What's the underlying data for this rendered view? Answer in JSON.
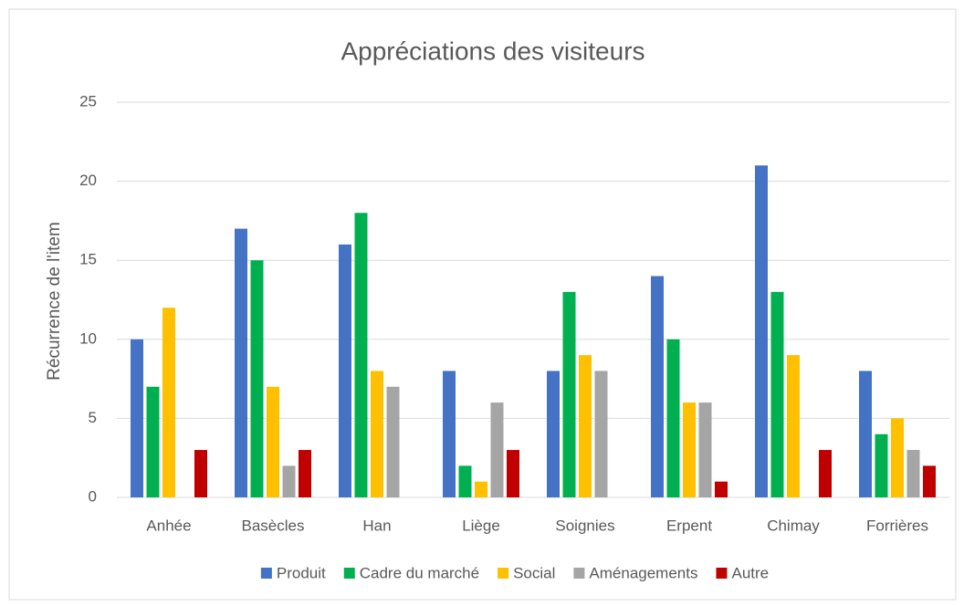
{
  "chart_data": {
    "type": "bar",
    "title": "Appréciations des visiteurs",
    "y_label": "Récurrence de l'item",
    "categories": [
      "Anhée",
      "Basècles",
      "Han",
      "Liège",
      "Soignies",
      "Erpent",
      "Chimay",
      "Forrières"
    ],
    "series": [
      {
        "name": "Produit",
        "color": "#4472c4",
        "values": [
          10,
          17,
          16,
          8,
          8,
          14,
          21,
          8
        ]
      },
      {
        "name": "Cadre du marché",
        "color": "#00b050",
        "values": [
          7,
          15,
          18,
          2,
          13,
          10,
          13,
          4
        ]
      },
      {
        "name": "Social",
        "color": "#ffc000",
        "values": [
          12,
          7,
          8,
          1,
          9,
          6,
          9,
          5
        ]
      },
      {
        "name": "Aménagements",
        "color": "#a5a5a5",
        "values": [
          0,
          2,
          7,
          6,
          8,
          6,
          0,
          3
        ]
      },
      {
        "name": "Autre",
        "color": "#c00000",
        "values": [
          3,
          3,
          0,
          3,
          0,
          1,
          3,
          2
        ]
      }
    ],
    "ylim": [
      0,
      25
    ],
    "yticks": [
      0,
      5,
      10,
      15,
      20,
      25
    ],
    "grid": true,
    "legend": "bottom"
  }
}
